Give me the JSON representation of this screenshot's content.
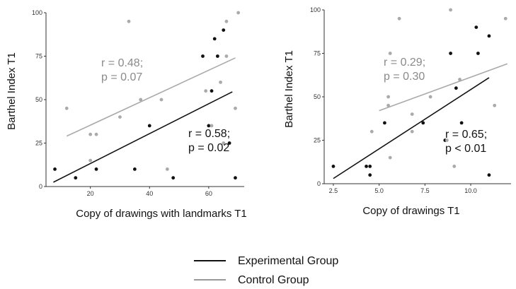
{
  "chart_data": [
    {
      "type": "scatter",
      "xlabel": "Copy of drawings with landmarks T1",
      "ylabel": "Barthel Index T1",
      "xlim": [
        5,
        72
      ],
      "ylim": [
        0,
        100
      ],
      "xticks": [
        "20",
        "40",
        "60"
      ],
      "yticks": [
        "0",
        "25",
        "50",
        "75",
        "100"
      ],
      "grid": false,
      "series": [
        {
          "name": "Experimental Group",
          "color": "#111111",
          "points": [
            [
              8,
              10
            ],
            [
              15,
              5
            ],
            [
              22,
              10
            ],
            [
              35,
              10
            ],
            [
              40,
              35
            ],
            [
              48,
              5
            ],
            [
              58,
              75
            ],
            [
              60,
              35
            ],
            [
              61,
              55
            ],
            [
              62,
              85
            ],
            [
              63,
              75
            ],
            [
              65,
              90
            ],
            [
              67,
              25
            ],
            [
              69,
              5
            ]
          ],
          "fit": [
            [
              7.5,
              2.5
            ],
            [
              68,
              54.5
            ]
          ]
        },
        {
          "name": "Control Group",
          "color": "#aaaaaa",
          "points": [
            [
              12,
              45
            ],
            [
              20,
              30
            ],
            [
              20,
              15
            ],
            [
              22,
              30
            ],
            [
              30,
              40
            ],
            [
              33,
              95
            ],
            [
              37,
              50
            ],
            [
              44,
              50
            ],
            [
              46,
              10
            ],
            [
              61,
              35
            ],
            [
              64,
              60
            ],
            [
              65,
              25
            ],
            [
              66,
              75
            ],
            [
              66,
              95
            ],
            [
              69,
              45
            ],
            [
              70,
              100
            ],
            [
              59,
              55
            ]
          ],
          "fit": [
            [
              12,
              29
            ],
            [
              69,
              74
            ]
          ]
        }
      ],
      "annotations": [
        {
          "series": "Control Group",
          "lines": [
            "r = 0.48;",
            "p = 0.07"
          ]
        },
        {
          "series": "Experimental Group",
          "lines": [
            "r = 0.58;",
            "p = 0.02"
          ]
        }
      ]
    },
    {
      "type": "scatter",
      "xlabel": "Copy of drawings T1",
      "ylabel": "Barthel Index T1",
      "xlim": [
        2.0,
        12.2
      ],
      "ylim": [
        0,
        100
      ],
      "xticks": [
        "2.5",
        "5.0",
        "7.5",
        "10.0"
      ],
      "yticks": [
        "0",
        "25",
        "50",
        "75",
        "100"
      ],
      "grid": false,
      "series": [
        {
          "name": "Experimental Group",
          "color": "#111111",
          "points": [
            [
              2.5,
              10
            ],
            [
              4.3,
              10
            ],
            [
              4.5,
              10
            ],
            [
              4.5,
              5
            ],
            [
              5.3,
              35
            ],
            [
              7.4,
              35
            ],
            [
              8.6,
              25
            ],
            [
              8.9,
              75
            ],
            [
              9.2,
              55
            ],
            [
              9.5,
              35
            ],
            [
              10.3,
              90
            ],
            [
              10.4,
              75
            ],
            [
              11.0,
              85
            ],
            [
              11.0,
              5
            ]
          ],
          "fit": [
            [
              2.5,
              3
            ],
            [
              11.0,
              61
            ]
          ]
        },
        {
          "name": "Control Group",
          "color": "#aaaaaa",
          "points": [
            [
              4.6,
              30
            ],
            [
              5.5,
              50
            ],
            [
              5.5,
              45
            ],
            [
              5.6,
              75
            ],
            [
              5.6,
              15
            ],
            [
              6.1,
              95
            ],
            [
              6.8,
              40
            ],
            [
              6.8,
              30
            ],
            [
              7.8,
              50
            ],
            [
              8.7,
              25
            ],
            [
              8.9,
              100
            ],
            [
              9.1,
              10
            ],
            [
              9.4,
              60
            ],
            [
              11.3,
              45
            ],
            [
              11.9,
              95
            ]
          ],
          "fit": [
            [
              5.0,
              42
            ],
            [
              12.0,
              69
            ]
          ]
        }
      ],
      "annotations": [
        {
          "series": "Control Group",
          "lines": [
            "r = 0.29;",
            "p = 0.30"
          ]
        },
        {
          "series": "Experimental Group",
          "lines": [
            "r = 0.65;",
            "p < 0.01"
          ]
        }
      ]
    }
  ],
  "legend": {
    "placement": "bottom-center",
    "items": [
      {
        "label": "Experimental Group",
        "color": "#111111"
      },
      {
        "label": "Control Group",
        "color": "#999999"
      }
    ]
  }
}
